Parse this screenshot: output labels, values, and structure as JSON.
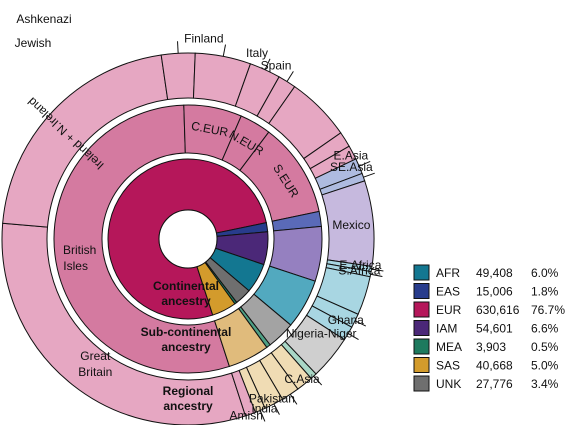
{
  "chart_data": {
    "type": "sunburst",
    "ring_titles": {
      "inner": [
        "Continental",
        "ancestry"
      ],
      "middle": [
        "Sub-continental",
        "ancestry"
      ],
      "outer": [
        "Regional",
        "ancestry"
      ]
    },
    "continental": [
      {
        "code": "EUR",
        "count": 630616,
        "percent": "76.7%",
        "color": "#b5175a"
      },
      {
        "code": "EAS",
        "count": 15006,
        "percent": "1.8%",
        "color": "#283c8c"
      },
      {
        "code": "IAM",
        "count": 54601,
        "percent": "6.6%",
        "color": "#4b2878"
      },
      {
        "code": "AFR",
        "count": 49408,
        "percent": "6.0%",
        "color": "#137791"
      },
      {
        "code": "UNK",
        "count": 27776,
        "percent": "3.4%",
        "color": "#6f6f6f"
      },
      {
        "code": "MEA",
        "count": 3903,
        "percent": "0.5%",
        "color": "#1e7a5e"
      },
      {
        "code": "SAS",
        "count": 40668,
        "percent": "5.0%",
        "color": "#d39b2c"
      }
    ],
    "legend_order": [
      "AFR",
      "EAS",
      "EUR",
      "IAM",
      "MEA",
      "SAS",
      "UNK"
    ],
    "subcontinental": [
      {
        "label": "British Isles",
        "value": 0.545,
        "color": "#d47aa0"
      },
      {
        "label": "C.EUR",
        "value": 0.07,
        "color": "#d47aa0"
      },
      {
        "label": "N.EUR",
        "value": 0.038,
        "color": "#d47aa0"
      },
      {
        "label": "S.EUR",
        "value": 0.114,
        "color": "#d47aa0"
      },
      {
        "label": "",
        "value": 0.018,
        "color": "#5a6ab8"
      },
      {
        "label": "",
        "value": 0.066,
        "color": "#9580c0"
      },
      {
        "label": "",
        "value": 0.06,
        "color": "#52a9bf"
      },
      {
        "label": "",
        "value": 0.034,
        "color": "#a3a3a3"
      },
      {
        "label": "",
        "value": 0.005,
        "color": "#4e9f84"
      },
      {
        "label": "",
        "value": 0.05,
        "color": "#e0bb7c"
      }
    ],
    "regional": [
      {
        "label": "Great Britain",
        "value": 0.279,
        "color": "#e6a7c2"
      },
      {
        "label": "Ireland + N.Ireland",
        "value": 0.19,
        "color": "#e6a7c2"
      },
      {
        "label": "Ashkenazi Jewish",
        "value": 0.026,
        "color": "#e6a7c2"
      },
      {
        "label": "Finland",
        "value": 0.043,
        "color": "#e6a7c2"
      },
      {
        "label": "Italy",
        "value": 0.024,
        "color": "#e6a7c2"
      },
      {
        "label": "Spain",
        "value": 0.014,
        "color": "#e6a7c2"
      },
      {
        "label": "",
        "value": 0.05,
        "color": "#e6a7c2"
      },
      {
        "label": "",
        "value": 0.012,
        "color": "#e6a7c2"
      },
      {
        "label": "",
        "value": 0.011,
        "color": "#e6a7c2"
      },
      {
        "label": "E.Asia",
        "value": 0.012,
        "color": "#aebbe0"
      },
      {
        "label": "SE.Asia",
        "value": 0.006,
        "color": "#aebbe0"
      },
      {
        "label": "Mexico",
        "value": 0.066,
        "color": "#c6b9de"
      },
      {
        "label": "E.Africa",
        "value": 0.004,
        "color": "#a8d6e2"
      },
      {
        "label": "S.Africa",
        "value": 0.004,
        "color": "#a8d6e2"
      },
      {
        "label": "",
        "value": 0.03,
        "color": "#a8d6e2"
      },
      {
        "label": "Ghana",
        "value": 0.011,
        "color": "#a8d6e2"
      },
      {
        "label": "Nigeria-Niger",
        "value": 0.011,
        "color": "#a8d6e2"
      },
      {
        "label": "",
        "value": 0.034,
        "color": "#cfcfcf"
      },
      {
        "label": "C.Asia",
        "value": 0.005,
        "color": "#a9d7c6"
      },
      {
        "label": "",
        "value": 0.013,
        "color": "#f0dcb4"
      },
      {
        "label": "Pakistan",
        "value": 0.014,
        "color": "#f0dcb4"
      },
      {
        "label": "India",
        "value": 0.015,
        "color": "#f0dcb4"
      },
      {
        "label": "Amish",
        "value": 0.008,
        "color": "#f0dcb4"
      },
      {
        "label": "",
        "value": 0.008,
        "color": "#e6a7c2"
      }
    ]
  }
}
